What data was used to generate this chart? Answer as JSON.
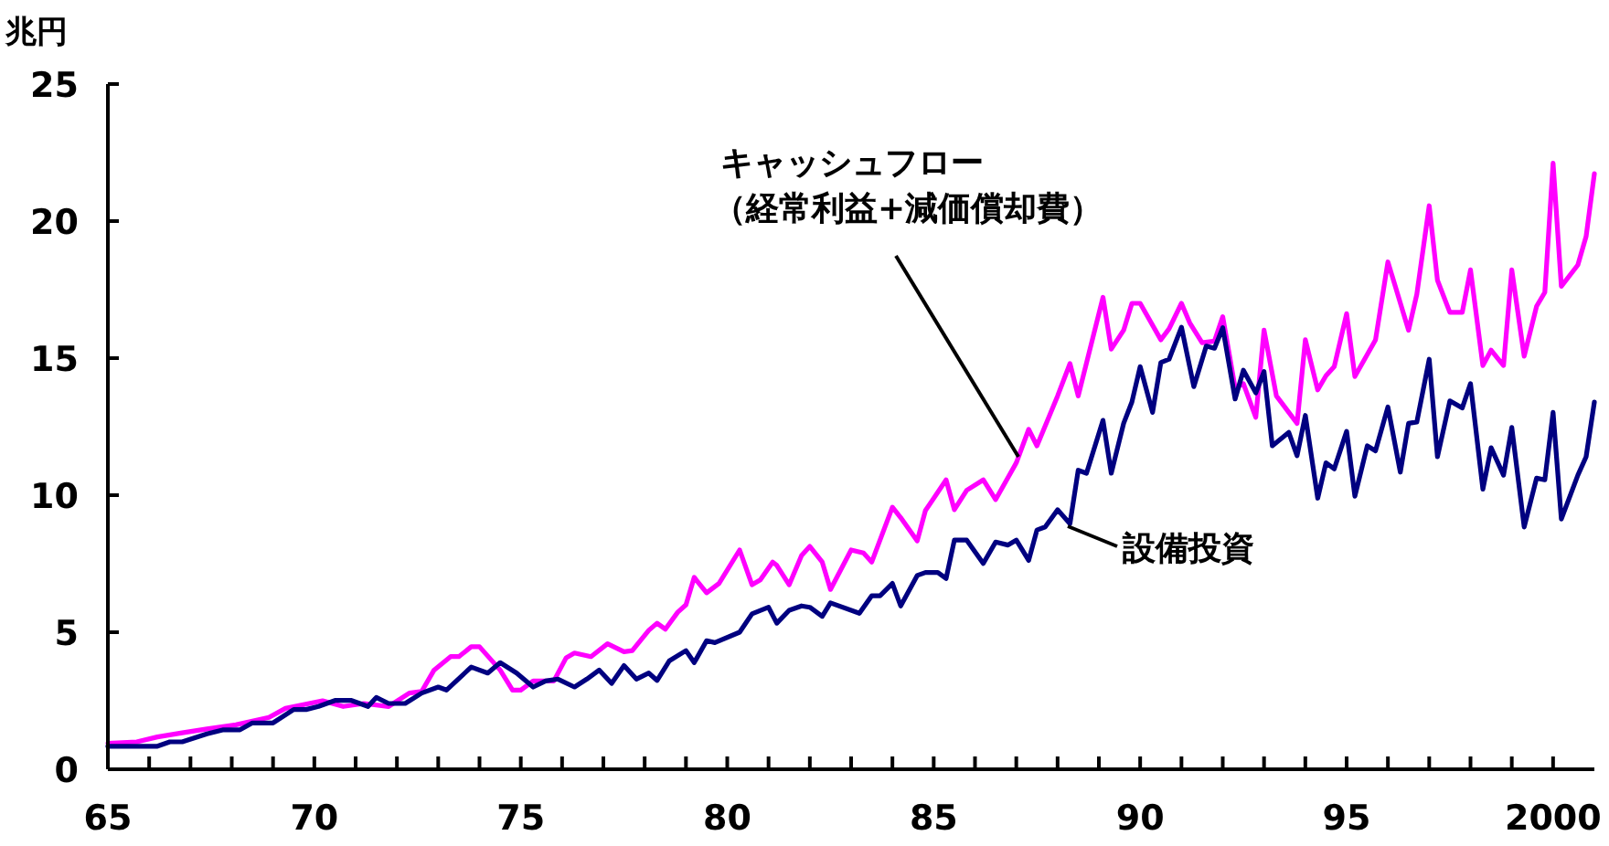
{
  "chart_data": {
    "type": "line",
    "ylabel": "兆円",
    "xlim": [
      1965,
      2001
    ],
    "ylim": [
      0,
      25
    ],
    "xticks": [
      {
        "value": 1965,
        "label": "65"
      },
      {
        "value": 1966,
        "label": null
      },
      {
        "value": 1967,
        "label": null
      },
      {
        "value": 1968,
        "label": null
      },
      {
        "value": 1969,
        "label": null
      },
      {
        "value": 1970,
        "label": "70"
      },
      {
        "value": 1971,
        "label": null
      },
      {
        "value": 1972,
        "label": null
      },
      {
        "value": 1973,
        "label": null
      },
      {
        "value": 1974,
        "label": null
      },
      {
        "value": 1975,
        "label": "75"
      },
      {
        "value": 1976,
        "label": null
      },
      {
        "value": 1977,
        "label": null
      },
      {
        "value": 1978,
        "label": null
      },
      {
        "value": 1979,
        "label": null
      },
      {
        "value": 1980,
        "label": "80"
      },
      {
        "value": 1981,
        "label": null
      },
      {
        "value": 1982,
        "label": null
      },
      {
        "value": 1983,
        "label": null
      },
      {
        "value": 1984,
        "label": null
      },
      {
        "value": 1985,
        "label": "85"
      },
      {
        "value": 1986,
        "label": null
      },
      {
        "value": 1987,
        "label": null
      },
      {
        "value": 1988,
        "label": null
      },
      {
        "value": 1989,
        "label": null
      },
      {
        "value": 1990,
        "label": "90"
      },
      {
        "value": 1991,
        "label": null
      },
      {
        "value": 1992,
        "label": null
      },
      {
        "value": 1993,
        "label": null
      },
      {
        "value": 1994,
        "label": null
      },
      {
        "value": 1995,
        "label": "95"
      },
      {
        "value": 1996,
        "label": null
      },
      {
        "value": 1997,
        "label": null
      },
      {
        "value": 1998,
        "label": null
      },
      {
        "value": 1999,
        "label": null
      },
      {
        "value": 2000,
        "label": "2000"
      }
    ],
    "yticks": [
      0,
      5,
      10,
      15,
      20,
      25
    ],
    "grid": false,
    "marker": "none",
    "line_style": "solid",
    "series": [
      {
        "name": "キャッシュフロー（経常利益+減価償却費）",
        "color": "#ff00ff",
        "x": [
          1965.0,
          1965.7,
          1966.2,
          1966.8,
          1967.4,
          1968.1,
          1968.9,
          1969.3,
          1970.2,
          1970.7,
          1971.2,
          1971.8,
          1972.3,
          1972.6,
          1972.9,
          1973.3,
          1973.5,
          1973.8,
          1974.0,
          1974.5,
          1974.8,
          1975.0,
          1975.3,
          1975.8,
          1976.1,
          1976.3,
          1976.7,
          1977.1,
          1977.5,
          1977.7,
          1978.1,
          1978.3,
          1978.5,
          1978.8,
          1979.0,
          1979.2,
          1979.5,
          1979.8,
          1980.3,
          1980.6,
          1980.8,
          1981.1,
          1981.2,
          1981.5,
          1981.8,
          1982.0,
          1982.3,
          1982.5,
          1983.0,
          1983.3,
          1983.5,
          1984.0,
          1984.2,
          1984.6,
          1984.8,
          1985.3,
          1985.5,
          1985.8,
          1986.2,
          1986.5,
          1987.0,
          1987.3,
          1987.5,
          1988.0,
          1988.3,
          1988.5,
          1989.1,
          1989.3,
          1989.6,
          1989.8,
          1990.0,
          1990.5,
          1990.7,
          1991.0,
          1991.2,
          1991.5,
          1991.8,
          1992.0,
          1992.3,
          1992.5,
          1992.8,
          1993.0,
          1993.3,
          1993.8,
          1994.0,
          1994.3,
          1994.5,
          1994.7,
          1995.0,
          1995.2,
          1995.7,
          1996.0,
          1996.5,
          1996.7,
          1997.0,
          1997.2,
          1997.5,
          1997.8,
          1998.0,
          1998.3,
          1998.5,
          1998.8,
          1999.0,
          1999.3,
          1999.6,
          1999.8,
          2000.0,
          2000.2,
          2000.6,
          2000.8,
          2001.0
        ],
        "values": [
          0.95,
          1.0,
          1.18,
          1.33,
          1.47,
          1.62,
          1.89,
          2.22,
          2.5,
          2.29,
          2.4,
          2.29,
          2.78,
          2.84,
          3.62,
          4.11,
          4.11,
          4.47,
          4.47,
          3.62,
          2.89,
          2.89,
          3.22,
          3.22,
          4.07,
          4.24,
          4.11,
          4.58,
          4.29,
          4.33,
          5.07,
          5.33,
          5.11,
          5.73,
          6.0,
          7.0,
          6.44,
          6.78,
          8.0,
          6.73,
          6.91,
          7.56,
          7.44,
          6.73,
          7.8,
          8.13,
          7.56,
          6.56,
          8.0,
          7.89,
          7.56,
          9.56,
          9.18,
          8.33,
          9.44,
          10.56,
          9.47,
          10.18,
          10.56,
          9.84,
          11.18,
          12.4,
          11.8,
          13.62,
          14.8,
          13.62,
          17.22,
          15.33,
          16.02,
          17.0,
          17.0,
          15.67,
          16.07,
          17.0,
          16.29,
          15.56,
          15.62,
          16.51,
          13.91,
          14.07,
          12.84,
          16.02,
          13.62,
          12.62,
          15.67,
          13.84,
          14.36,
          14.69,
          16.62,
          14.33,
          15.67,
          18.51,
          16.02,
          17.33,
          20.56,
          17.84,
          16.67,
          16.67,
          18.22,
          14.73,
          15.29,
          14.73,
          18.22,
          15.07,
          16.89,
          17.4,
          22.11,
          17.62,
          18.4,
          19.44,
          21.73
        ]
      },
      {
        "name": "設備投資",
        "color": "#000080",
        "x": [
          1965.0,
          1965.2,
          1965.7,
          1966.2,
          1966.5,
          1966.8,
          1967.4,
          1967.8,
          1968.2,
          1968.5,
          1969.0,
          1969.5,
          1969.8,
          1970.1,
          1970.5,
          1970.9,
          1971.3,
          1971.5,
          1971.8,
          1972.2,
          1972.6,
          1973.0,
          1973.2,
          1973.8,
          1974.2,
          1974.5,
          1974.9,
          1975.3,
          1975.6,
          1975.9,
          1976.3,
          1976.6,
          1976.9,
          1977.2,
          1977.5,
          1977.8,
          1978.1,
          1978.3,
          1978.6,
          1979.0,
          1979.2,
          1979.5,
          1979.7,
          1980.3,
          1980.6,
          1981.0,
          1981.2,
          1981.5,
          1981.8,
          1982.0,
          1982.3,
          1982.5,
          1983.2,
          1983.5,
          1983.7,
          1984.0,
          1984.2,
          1984.6,
          1984.8,
          1985.1,
          1985.3,
          1985.5,
          1985.8,
          1986.2,
          1986.5,
          1986.8,
          1987.0,
          1987.3,
          1987.5,
          1987.7,
          1988.0,
          1988.3,
          1988.5,
          1988.7,
          1989.1,
          1989.3,
          1989.6,
          1989.8,
          1990.0,
          1990.3,
          1990.5,
          1990.7,
          1991.0,
          1991.3,
          1991.6,
          1991.8,
          1992.0,
          1992.3,
          1992.5,
          1992.8,
          1993.0,
          1993.2,
          1993.6,
          1993.8,
          1994.0,
          1994.3,
          1994.5,
          1994.7,
          1995.0,
          1995.2,
          1995.5,
          1995.7,
          1996.0,
          1996.3,
          1996.5,
          1996.7,
          1997.0,
          1997.2,
          1997.5,
          1997.8,
          1998.0,
          1998.3,
          1998.5,
          1998.8,
          1999.0,
          1999.3,
          1999.6,
          1999.8,
          2000.0,
          2000.2,
          2000.6,
          2000.8,
          2001.0
        ],
        "values": [
          0.84,
          0.84,
          0.84,
          0.84,
          1.0,
          1.0,
          1.29,
          1.44,
          1.44,
          1.69,
          1.69,
          2.18,
          2.18,
          2.29,
          2.51,
          2.51,
          2.29,
          2.62,
          2.4,
          2.4,
          2.78,
          3.0,
          2.89,
          3.73,
          3.51,
          3.89,
          3.51,
          3.0,
          3.22,
          3.29,
          3.0,
          3.29,
          3.62,
          3.13,
          3.78,
          3.29,
          3.51,
          3.24,
          3.96,
          4.33,
          3.89,
          4.69,
          4.62,
          5.0,
          5.67,
          5.91,
          5.33,
          5.8,
          5.96,
          5.91,
          5.58,
          6.07,
          5.69,
          6.33,
          6.33,
          6.78,
          5.96,
          7.07,
          7.18,
          7.18,
          6.96,
          8.36,
          8.36,
          7.51,
          8.29,
          8.18,
          8.36,
          7.62,
          8.73,
          8.84,
          9.47,
          8.96,
          10.91,
          10.8,
          12.73,
          10.8,
          12.62,
          13.4,
          14.69,
          13.02,
          14.84,
          14.96,
          16.13,
          13.96,
          15.44,
          15.36,
          16.11,
          13.51,
          14.56,
          13.73,
          14.51,
          11.8,
          12.29,
          11.44,
          12.91,
          9.89,
          11.18,
          10.96,
          12.33,
          9.96,
          11.8,
          11.62,
          13.22,
          10.84,
          12.62,
          12.67,
          14.96,
          11.4,
          13.44,
          13.18,
          14.07,
          10.22,
          11.73,
          10.73,
          12.47,
          8.84,
          10.62,
          10.56,
          13.02,
          9.13,
          10.73,
          11.4,
          13.4
        ]
      }
    ]
  }
}
